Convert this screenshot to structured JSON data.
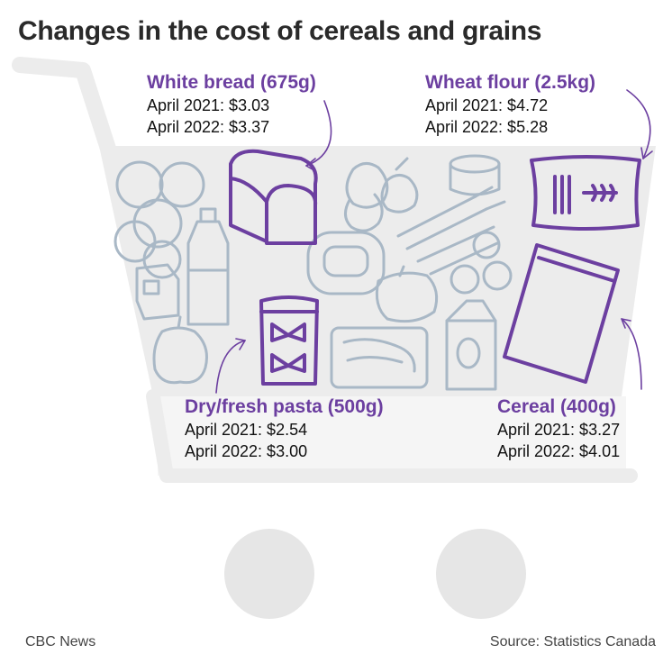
{
  "title": "Changes in the cost of cereals and grains",
  "items": {
    "white_bread": {
      "name": "White bread (675g)",
      "line1": "April 2021: $3.03",
      "line2": "April 2022: $3.37"
    },
    "wheat_flour": {
      "name": "Wheat flour (2.5kg)",
      "line1": "April 2021: $4.72",
      "line2": "April 2022: $5.28"
    },
    "pasta": {
      "name": "Dry/fresh pasta (500g)",
      "line1": "April 2021: $2.54",
      "line2": "April 2022: $3.00"
    },
    "cereal": {
      "name": "Cereal (400g)",
      "line1": "April 2021: $3.27",
      "line2": "April 2022: $4.01"
    }
  },
  "footer": {
    "left": "CBC News",
    "right": "Source: Statistics Canada"
  },
  "colors": {
    "accent_purple": "#6c3fa0",
    "cart_gray": "#ececec",
    "outline_blue": "#7a93a8"
  },
  "icons": [
    "shopping-cart",
    "bread-loaf",
    "flour-bag",
    "pasta-bag",
    "cereal-bag",
    "oranges",
    "bottle",
    "milk-carton",
    "onions",
    "can",
    "carrots",
    "apples",
    "butter-dish",
    "peppers",
    "meat-tray",
    "coffee-bag"
  ]
}
